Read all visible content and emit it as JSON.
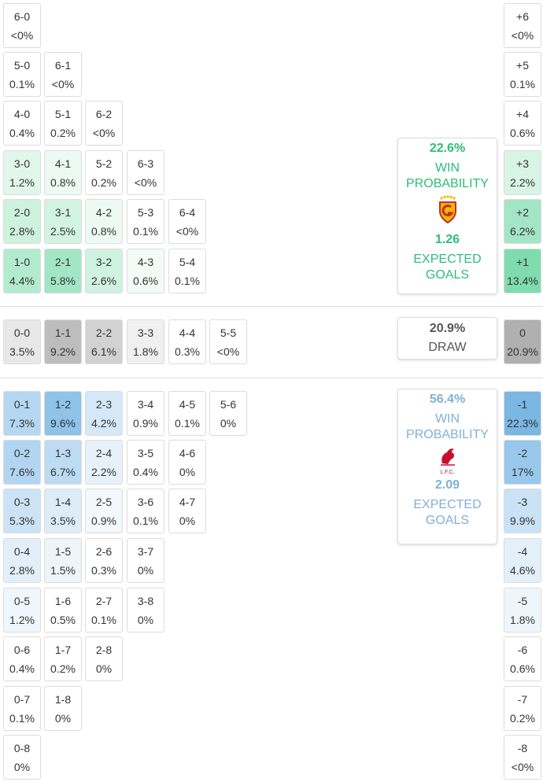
{
  "home": {
    "rows": [
      [
        {
          "score": "6-0",
          "prob": "<0%"
        }
      ],
      [
        {
          "score": "5-0",
          "prob": "0.1%"
        },
        {
          "score": "6-1",
          "prob": "<0%"
        }
      ],
      [
        {
          "score": "4-0",
          "prob": "0.4%"
        },
        {
          "score": "5-1",
          "prob": "0.2%"
        },
        {
          "score": "6-2",
          "prob": "<0%"
        }
      ],
      [
        {
          "score": "3-0",
          "prob": "1.2%",
          "color": "#e2f7ec"
        },
        {
          "score": "4-1",
          "prob": "0.8%",
          "color": "#edfaf3"
        },
        {
          "score": "5-2",
          "prob": "0.2%"
        },
        {
          "score": "6-3",
          "prob": "<0%"
        }
      ],
      [
        {
          "score": "2-0",
          "prob": "2.8%",
          "color": "#cdf2de"
        },
        {
          "score": "3-1",
          "prob": "2.5%",
          "color": "#d2f3e2"
        },
        {
          "score": "4-2",
          "prob": "0.8%",
          "color": "#edfaf3"
        },
        {
          "score": "5-3",
          "prob": "0.1%"
        },
        {
          "score": "6-4",
          "prob": "<0%"
        }
      ],
      [
        {
          "score": "1-0",
          "prob": "4.4%",
          "color": "#b3ebcf"
        },
        {
          "score": "2-1",
          "prob": "5.8%",
          "color": "#a2e6c5"
        },
        {
          "score": "3-2",
          "prob": "2.6%",
          "color": "#d0f2e0"
        },
        {
          "score": "4-3",
          "prob": "0.6%",
          "color": "#f2fbf6"
        },
        {
          "score": "5-4",
          "prob": "0.1%"
        }
      ]
    ],
    "margins": [
      {
        "score": "+6",
        "prob": "<0%"
      },
      {
        "score": "+5",
        "prob": "0.1%"
      },
      {
        "score": "+4",
        "prob": "0.6%"
      },
      {
        "score": "+3",
        "prob": "2.2%",
        "color": "#d8f4e5"
      },
      {
        "score": "+2",
        "prob": "6.2%",
        "color": "#a3e6c5"
      },
      {
        "score": "+1",
        "prob": "13.4%",
        "color": "#7fdcae"
      }
    ],
    "card": {
      "win": "22.6%",
      "win_label": "WIN PROBABILITY",
      "xg": "1.26",
      "xg_label": "EXPECTED GOALS",
      "color": "#2dbd78"
    }
  },
  "draw": {
    "rows": [
      [
        {
          "score": "0-0",
          "prob": "3.5%",
          "color": "#e8e8e8"
        },
        {
          "score": "1-1",
          "prob": "9.2%",
          "color": "#bdbdbd"
        },
        {
          "score": "2-2",
          "prob": "6.1%",
          "color": "#d2d2d2"
        },
        {
          "score": "3-3",
          "prob": "1.8%",
          "color": "#f0f0f0"
        },
        {
          "score": "4-4",
          "prob": "0.3%"
        },
        {
          "score": "5-5",
          "prob": "<0%"
        }
      ]
    ],
    "margins": [
      {
        "score": "0",
        "prob": "20.9%",
        "color": "#b0b0b0"
      }
    ],
    "card": {
      "value": "20.9%",
      "label": "DRAW"
    }
  },
  "away": {
    "rows": [
      [
        {
          "score": "0-1",
          "prob": "7.3%",
          "color": "#b5d7f1"
        },
        {
          "score": "1-2",
          "prob": "9.6%",
          "color": "#8fc3ea"
        },
        {
          "score": "2-3",
          "prob": "4.2%",
          "color": "#d5e8f7"
        },
        {
          "score": "3-4",
          "prob": "0.9%"
        },
        {
          "score": "4-5",
          "prob": "0.1%"
        },
        {
          "score": "5-6",
          "prob": "0%"
        }
      ],
      [
        {
          "score": "0-2",
          "prob": "7.6%",
          "color": "#b2d5f1"
        },
        {
          "score": "1-3",
          "prob": "6.7%",
          "color": "#bddbf3"
        },
        {
          "score": "2-4",
          "prob": "2.2%",
          "color": "#e6f1fa"
        },
        {
          "score": "3-5",
          "prob": "0.4%"
        },
        {
          "score": "4-6",
          "prob": "0%"
        }
      ],
      [
        {
          "score": "0-3",
          "prob": "5.3%",
          "color": "#cbe3f5"
        },
        {
          "score": "1-4",
          "prob": "3.5%",
          "color": "#dcecf8"
        },
        {
          "score": "2-5",
          "prob": "0.9%",
          "color": "#f3f8fc"
        },
        {
          "score": "3-6",
          "prob": "0.1%"
        },
        {
          "score": "4-7",
          "prob": "0%"
        }
      ],
      [
        {
          "score": "0-4",
          "prob": "2.8%",
          "color": "#e2eff9"
        },
        {
          "score": "1-5",
          "prob": "1.5%",
          "color": "#edf5fb"
        },
        {
          "score": "2-6",
          "prob": "0.3%"
        },
        {
          "score": "3-7",
          "prob": "0%"
        }
      ],
      [
        {
          "score": "0-5",
          "prob": "1.2%",
          "color": "#eff6fc"
        },
        {
          "score": "1-6",
          "prob": "0.5%"
        },
        {
          "score": "2-7",
          "prob": "0.1%"
        },
        {
          "score": "3-8",
          "prob": "0%"
        }
      ],
      [
        {
          "score": "0-6",
          "prob": "0.4%"
        },
        {
          "score": "1-7",
          "prob": "0.2%"
        },
        {
          "score": "2-8",
          "prob": "0%"
        }
      ],
      [
        {
          "score": "0-7",
          "prob": "0.1%"
        },
        {
          "score": "1-8",
          "prob": "0%"
        }
      ],
      [
        {
          "score": "0-8",
          "prob": "0%"
        }
      ]
    ],
    "margins": [
      {
        "score": "-1",
        "prob": "22.3%",
        "color": "#7ab7e3"
      },
      {
        "score": "-2",
        "prob": "17%",
        "color": "#98c8ec"
      },
      {
        "score": "-3",
        "prob": "9.9%",
        "color": "#c9e2f5"
      },
      {
        "score": "-4",
        "prob": "4.6%",
        "color": "#e3f0fa"
      },
      {
        "score": "-5",
        "prob": "1.8%",
        "color": "#eef6fc"
      },
      {
        "score": "-6",
        "prob": "0.6%"
      },
      {
        "score": "-7",
        "prob": "0.2%"
      },
      {
        "score": "-8",
        "prob": "<0%"
      }
    ],
    "card": {
      "win": "56.4%",
      "win_label": "WIN PROBABILITY",
      "logo_text": "L.F.C.",
      "xg": "2.09",
      "xg_label": "EXPECTED GOALS",
      "color": "#7fb1d8"
    }
  }
}
